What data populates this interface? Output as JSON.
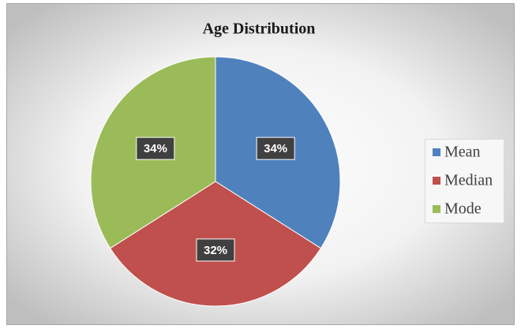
{
  "chart_data": {
    "type": "pie",
    "title": "Age Distribution",
    "categories": [
      "Mean",
      "Median",
      "Mode"
    ],
    "values": [
      34,
      32,
      34
    ],
    "value_labels": [
      "34%",
      "32%",
      "34%"
    ],
    "colors": [
      "#4f81bd",
      "#c0504d",
      "#9bbb59"
    ],
    "legend": "right"
  }
}
